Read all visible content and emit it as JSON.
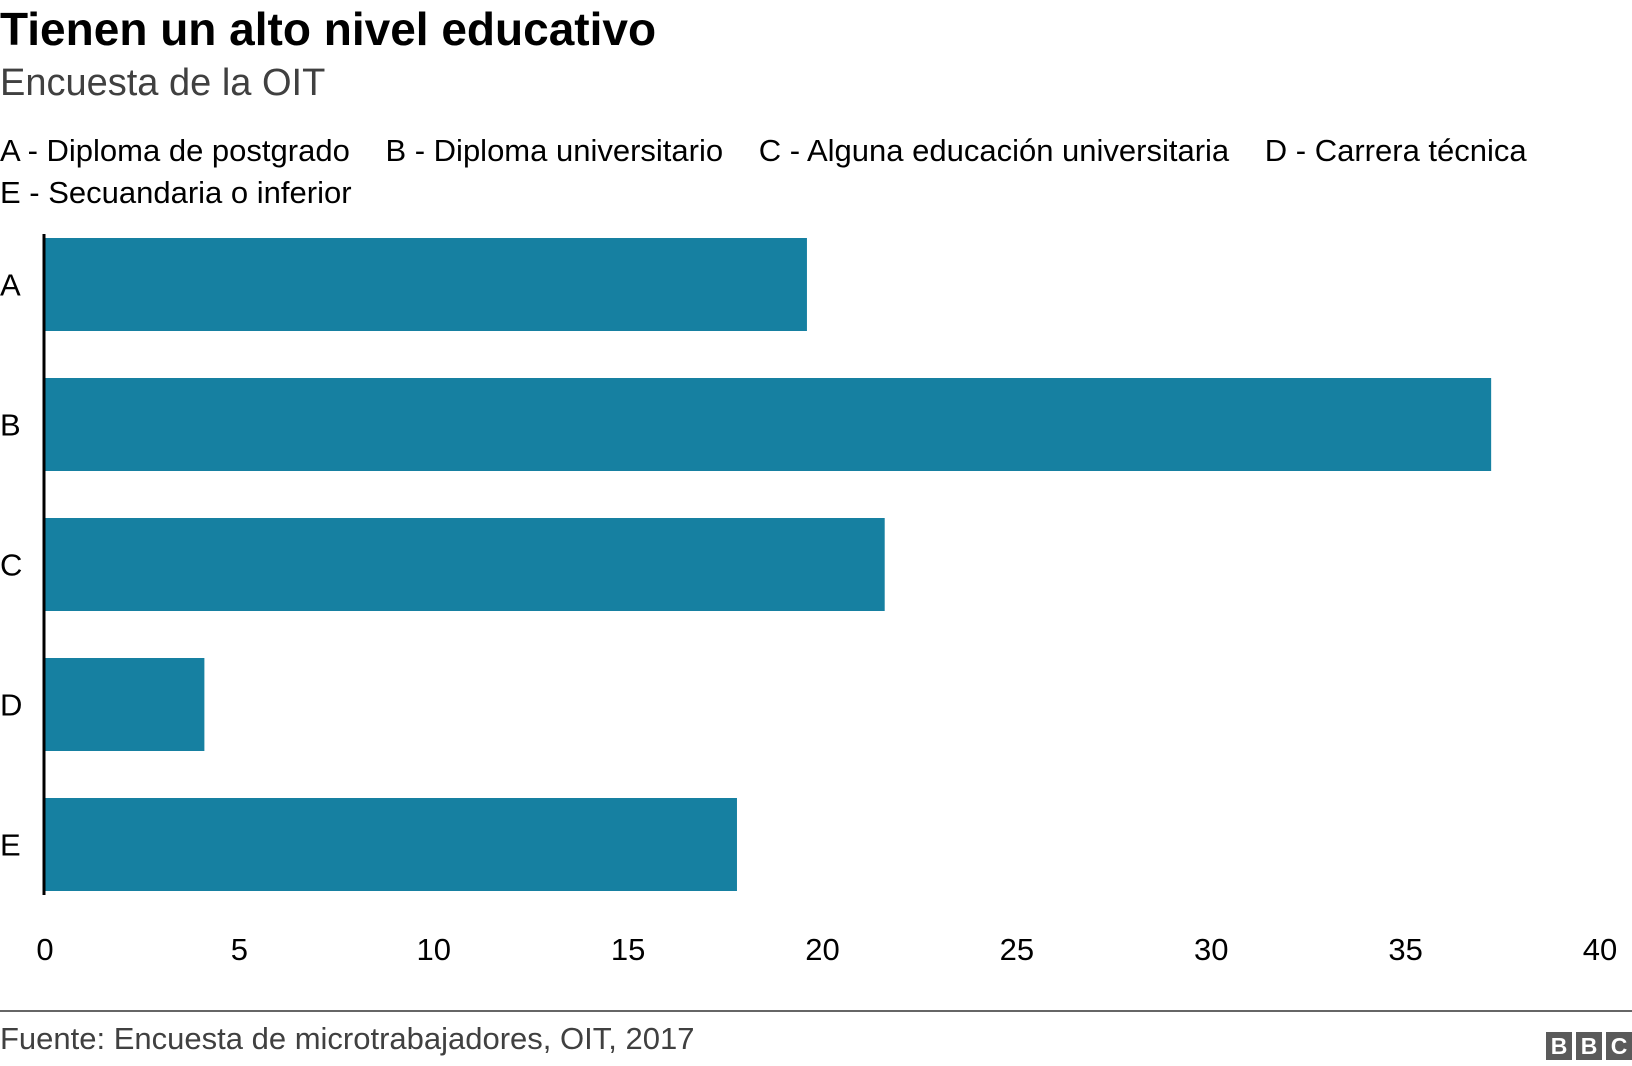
{
  "header": {
    "title": "Tienen un alto nivel educativo",
    "subtitle": "Encuesta de la OIT"
  },
  "legend": {
    "row1": [
      "A - Diploma de postgrado",
      "B - Diploma universitario",
      "C - Alguna educación universitaria",
      "D - Carrera técnica"
    ],
    "row2": [
      "E - Secuandaria o inferior"
    ]
  },
  "footer": {
    "source": "Fuente: Encuesta de microtrabajadores, OIT, 2017",
    "logo_letters": [
      "B",
      "B",
      "C"
    ]
  },
  "colors": {
    "bar": "#1680a1",
    "axis": "#000000",
    "text": "#000000",
    "muted": "#404040"
  },
  "chart_data": {
    "type": "bar",
    "orientation": "horizontal",
    "categories": [
      "A",
      "B",
      "C",
      "D",
      "E"
    ],
    "values": [
      19.6,
      37.2,
      21.6,
      4.1,
      17.8
    ],
    "xlim": [
      0,
      40
    ],
    "xticks": [
      0,
      5,
      10,
      15,
      20,
      25,
      30,
      35,
      40
    ],
    "grid": false,
    "legend_position": "top"
  }
}
